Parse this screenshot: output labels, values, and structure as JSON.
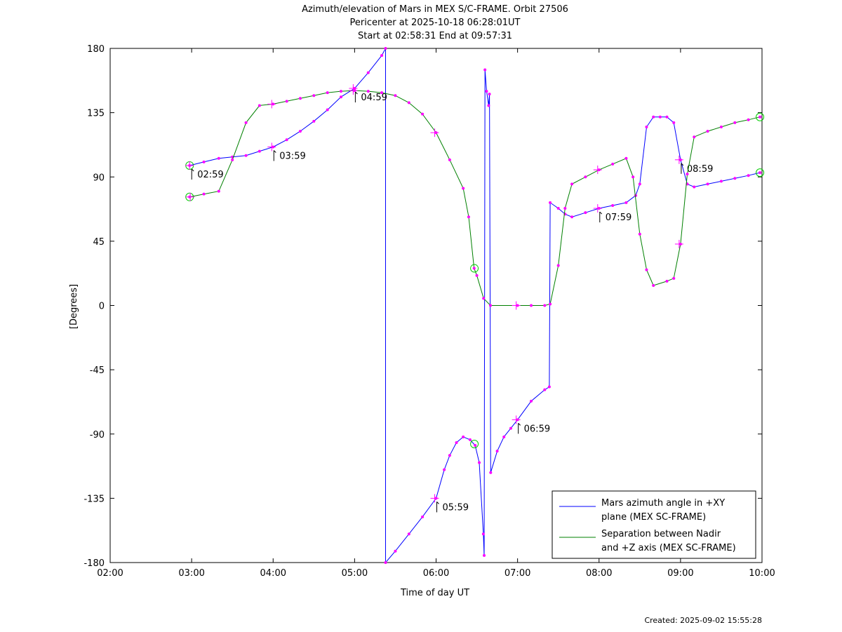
{
  "chart_data": {
    "type": "line",
    "title_lines": [
      "Azimuth/elevation of Mars in MEX S/C-FRAME.  Orbit 27506",
      "Pericenter at 2025-10-18 06:28:01UT",
      "Start at 02:58:31 End at 09:57:31"
    ],
    "xlabel": "Time of day UT",
    "ylabel": "[Degrees]",
    "x_unit": "hours UT",
    "xlim": [
      2,
      10
    ],
    "ylim": [
      -180,
      180
    ],
    "x_ticks": [
      2,
      3,
      4,
      5,
      6,
      7,
      8,
      9,
      10
    ],
    "x_tick_labels": [
      "02:00",
      "03:00",
      "04:00",
      "05:00",
      "06:00",
      "07:00",
      "08:00",
      "09:00",
      "10:00"
    ],
    "y_ticks": [
      180,
      135,
      90,
      45,
      0,
      -45,
      -90,
      -135,
      -180
    ],
    "y_tick_labels": [
      "180",
      "135",
      "90",
      "45",
      "0",
      "-45",
      "-90",
      "-135",
      "-180"
    ],
    "grid": false,
    "legend_position": "bottom-right",
    "colors": {
      "series1": "#0000ff",
      "series2": "#008000",
      "markers": "#ff00ff",
      "start_end": "#00cc00"
    },
    "series": [
      {
        "name": "Mars azimuth angle in +XY plane (MEX SC-FRAME)",
        "legend_lines": [
          "Mars azimuth angle in +XY",
          "plane (MEX SC-FRAME)"
        ],
        "color": "#0000ff",
        "points": [
          [
            2.975,
            98
          ],
          [
            3.15,
            100.5
          ],
          [
            3.333,
            103
          ],
          [
            3.5,
            104
          ],
          [
            3.667,
            105
          ],
          [
            3.833,
            108
          ],
          [
            4.0,
            111
          ],
          [
            4.167,
            116
          ],
          [
            4.333,
            122
          ],
          [
            4.5,
            129
          ],
          [
            4.667,
            137
          ],
          [
            4.833,
            146
          ],
          [
            5.0,
            152
          ],
          [
            5.167,
            163
          ],
          [
            5.333,
            175
          ],
          [
            5.38,
            180
          ],
          [
            5.38,
            -180
          ],
          [
            5.5,
            -172
          ],
          [
            5.667,
            -160
          ],
          [
            5.833,
            -148
          ],
          [
            6.0,
            -135
          ],
          [
            6.1,
            -115
          ],
          [
            6.167,
            -105
          ],
          [
            6.25,
            -96
          ],
          [
            6.333,
            -92
          ],
          [
            6.417,
            -94
          ],
          [
            6.48,
            -98
          ],
          [
            6.53,
            -110
          ],
          [
            6.58,
            -160
          ],
          [
            6.59,
            -175
          ],
          [
            6.6,
            165
          ],
          [
            6.62,
            150
          ],
          [
            6.645,
            140
          ],
          [
            6.655,
            148
          ],
          [
            6.67,
            -117
          ],
          [
            6.75,
            -102
          ],
          [
            6.833,
            -92
          ],
          [
            6.917,
            -86
          ],
          [
            7.0,
            -80
          ],
          [
            7.167,
            -67
          ],
          [
            7.333,
            -59
          ],
          [
            7.39,
            -57
          ],
          [
            7.4,
            72
          ],
          [
            7.5,
            68
          ],
          [
            7.583,
            64
          ],
          [
            7.667,
            62
          ],
          [
            7.833,
            65
          ],
          [
            8.0,
            68
          ],
          [
            8.167,
            70
          ],
          [
            8.333,
            72
          ],
          [
            8.45,
            77
          ],
          [
            8.5,
            85
          ],
          [
            8.583,
            125
          ],
          [
            8.667,
            132
          ],
          [
            8.75,
            132
          ],
          [
            8.833,
            132
          ],
          [
            8.917,
            128
          ],
          [
            9.0,
            102
          ],
          [
            9.083,
            85
          ],
          [
            9.167,
            83
          ],
          [
            9.333,
            85
          ],
          [
            9.5,
            87
          ],
          [
            9.667,
            89
          ],
          [
            9.833,
            91
          ],
          [
            9.975,
            93
          ]
        ],
        "hour_markers": [
          {
            "x": 2.975,
            "y": 98,
            "label": "02:59"
          },
          {
            "x": 3.983,
            "y": 111,
            "label": "03:59"
          },
          {
            "x": 4.983,
            "y": 152,
            "label": "04:59"
          },
          {
            "x": 5.983,
            "y": -135,
            "label": "05:59"
          },
          {
            "x": 6.983,
            "y": -80,
            "label": "06:59"
          },
          {
            "x": 7.983,
            "y": 68,
            "label": "07:59"
          },
          {
            "x": 8.983,
            "y": 102,
            "label": "08:59"
          }
        ],
        "start_end_markers": [
          [
            2.975,
            98
          ],
          [
            6.47,
            -97
          ],
          [
            9.975,
            93
          ]
        ]
      },
      {
        "name": "Separation between Nadir and +Z axis (MEX SC-FRAME)",
        "legend_lines": [
          "Separation between Nadir",
          "and +Z axis (MEX SC-FRAME)"
        ],
        "color": "#008000",
        "points": [
          [
            2.975,
            76
          ],
          [
            3.15,
            78
          ],
          [
            3.333,
            80
          ],
          [
            3.5,
            102
          ],
          [
            3.667,
            128
          ],
          [
            3.833,
            140
          ],
          [
            4.0,
            141
          ],
          [
            4.167,
            143
          ],
          [
            4.333,
            145
          ],
          [
            4.5,
            147
          ],
          [
            4.667,
            149
          ],
          [
            4.833,
            150
          ],
          [
            5.0,
            150.5
          ],
          [
            5.167,
            150
          ],
          [
            5.333,
            149
          ],
          [
            5.5,
            147
          ],
          [
            5.667,
            142
          ],
          [
            5.833,
            134
          ],
          [
            6.0,
            121
          ],
          [
            6.167,
            102
          ],
          [
            6.333,
            82
          ],
          [
            6.4,
            62
          ],
          [
            6.467,
            26
          ],
          [
            6.5,
            21
          ],
          [
            6.583,
            5
          ],
          [
            6.667,
            0
          ],
          [
            7.0,
            0
          ],
          [
            7.167,
            0
          ],
          [
            7.333,
            0
          ],
          [
            7.4,
            1
          ],
          [
            7.5,
            28
          ],
          [
            7.583,
            68
          ],
          [
            7.667,
            85
          ],
          [
            7.833,
            90
          ],
          [
            8.0,
            95
          ],
          [
            8.167,
            99
          ],
          [
            8.333,
            103
          ],
          [
            8.417,
            90
          ],
          [
            8.5,
            50
          ],
          [
            8.583,
            25
          ],
          [
            8.667,
            14
          ],
          [
            8.833,
            17
          ],
          [
            8.917,
            19
          ],
          [
            9.0,
            43
          ],
          [
            9.083,
            92
          ],
          [
            9.167,
            118
          ],
          [
            9.333,
            122
          ],
          [
            9.5,
            125
          ],
          [
            9.667,
            128
          ],
          [
            9.833,
            130
          ],
          [
            9.975,
            132
          ]
        ],
        "hour_markers": [
          {
            "x": 2.983,
            "y": 76
          },
          {
            "x": 3.983,
            "y": 141
          },
          {
            "x": 4.983,
            "y": 150.5
          },
          {
            "x": 5.983,
            "y": 121
          },
          {
            "x": 6.983,
            "y": 0
          },
          {
            "x": 7.983,
            "y": 95
          },
          {
            "x": 8.983,
            "y": 43
          }
        ],
        "start_end_markers": [
          [
            2.975,
            76
          ],
          [
            6.47,
            26
          ],
          [
            9.975,
            132
          ]
        ]
      }
    ]
  },
  "footer": {
    "created": "Created: 2025-09-02 15:55:28"
  }
}
